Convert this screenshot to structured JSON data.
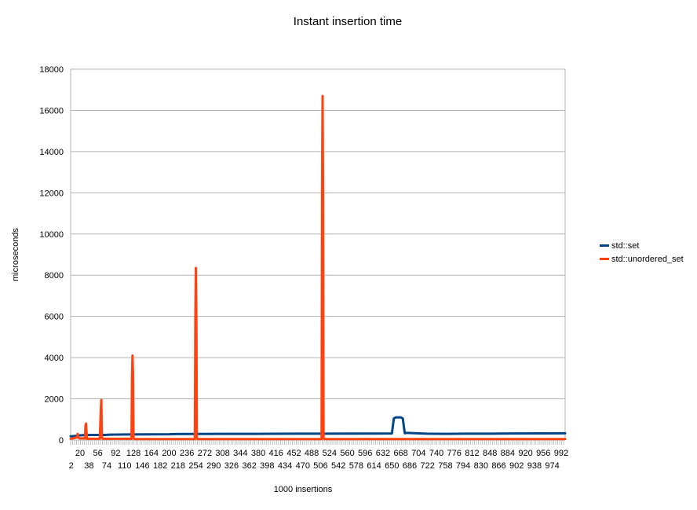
{
  "chart_data": {
    "type": "line",
    "title": "Instant insertion time",
    "xlabel": "1000 insertions",
    "ylabel": "microseconds",
    "ylim": [
      0,
      18000
    ],
    "yticks": [
      0,
      2000,
      4000,
      6000,
      8000,
      10000,
      12000,
      14000,
      16000,
      18000
    ],
    "xlim": [
      1,
      1000
    ],
    "xtick_labels_row1": [
      20,
      56,
      92,
      128,
      164,
      200,
      236,
      272,
      308,
      344,
      380,
      416,
      452,
      488,
      524,
      560,
      596,
      632,
      668,
      704,
      740,
      776,
      812,
      848,
      884,
      920,
      956,
      992
    ],
    "xtick_labels_row2": [
      2,
      38,
      74,
      110,
      146,
      182,
      218,
      254,
      290,
      326,
      362,
      398,
      434,
      470,
      506,
      542,
      578,
      614,
      650,
      686,
      722,
      758,
      794,
      830,
      866,
      902,
      938,
      974
    ],
    "grid": "horizontal",
    "legend_position": "right",
    "series": [
      {
        "name": "std::set",
        "color": "#004586",
        "x": [
          1,
          10,
          20,
          30,
          50,
          70,
          80,
          100,
          110,
          150,
          200,
          210,
          250,
          300,
          380,
          400,
          500,
          600,
          650,
          654,
          658,
          668,
          672,
          676,
          680,
          700,
          720,
          760,
          800,
          850,
          900,
          950,
          1000
        ],
        "y": [
          180,
          200,
          230,
          245,
          250,
          250,
          260,
          265,
          270,
          275,
          280,
          290,
          295,
          300,
          300,
          305,
          310,
          315,
          320,
          1050,
          1100,
          1100,
          1050,
          330,
          350,
          330,
          310,
          300,
          310,
          310,
          320,
          325,
          330
        ]
      },
      {
        "name": "std::unordered_set",
        "color": "#ff420e",
        "x": [
          1,
          5,
          10,
          14,
          15,
          16,
          18,
          20,
          30,
          31,
          32,
          34,
          60,
          62,
          63,
          64,
          66,
          90,
          124,
          125,
          126,
          127,
          128,
          130,
          200,
          252,
          253,
          254,
          255,
          256,
          258,
          300,
          400,
          508,
          509,
          510,
          511,
          512,
          514,
          600,
          800,
          1000
        ],
        "y": [
          60,
          80,
          100,
          150,
          300,
          120,
          90,
          80,
          80,
          700,
          800,
          60,
          60,
          1500,
          1950,
          150,
          60,
          60,
          60,
          3000,
          4100,
          3200,
          100,
          50,
          50,
          50,
          6000,
          8350,
          6000,
          100,
          50,
          50,
          50,
          50,
          12000,
          16700,
          12000,
          100,
          50,
          50,
          50,
          50
        ]
      }
    ]
  }
}
